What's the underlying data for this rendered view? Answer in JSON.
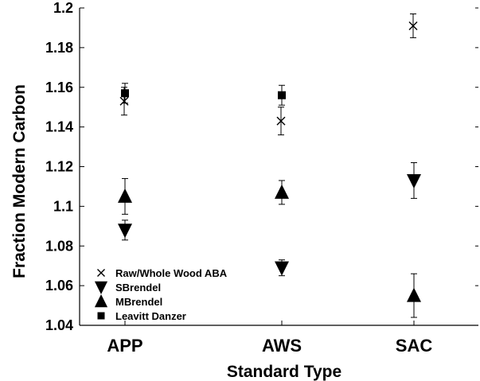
{
  "chart_data": {
    "type": "scatter",
    "title": "",
    "xlabel": "Standard Type",
    "ylabel": "Fraction Modern Carbon",
    "categories": [
      "APP",
      "AWS",
      "SAC"
    ],
    "ylim": [
      1.04,
      1.2
    ],
    "yticks": [
      1.04,
      1.06,
      1.08,
      1.1,
      1.12,
      1.14,
      1.16,
      1.18,
      1.2
    ],
    "ytick_labels": [
      "1.04",
      "1.06",
      "1.08",
      "1.1",
      "1.12",
      "1.14",
      "1.16",
      "1.18",
      "1.2"
    ],
    "grid": false,
    "legend_position": "bottom-left",
    "series": [
      {
        "name": "Raw/Whole Wood ABA",
        "marker": "x",
        "values": [
          1.153,
          1.143,
          1.191
        ],
        "errors": [
          0.007,
          0.007,
          0.006
        ]
      },
      {
        "name": "SBrendel",
        "marker": "triangle-down",
        "values": [
          1.088,
          1.069,
          1.113
        ],
        "errors": [
          0.005,
          0.004,
          0.009
        ]
      },
      {
        "name": "MBrendel",
        "marker": "triangle-up",
        "values": [
          1.105,
          1.107,
          1.055
        ],
        "errors": [
          0.009,
          0.006,
          0.011
        ]
      },
      {
        "name": "Leavitt Danzer",
        "marker": "square",
        "values": [
          1.157,
          1.156,
          null
        ],
        "errors": [
          0.005,
          0.005,
          null
        ]
      }
    ]
  }
}
